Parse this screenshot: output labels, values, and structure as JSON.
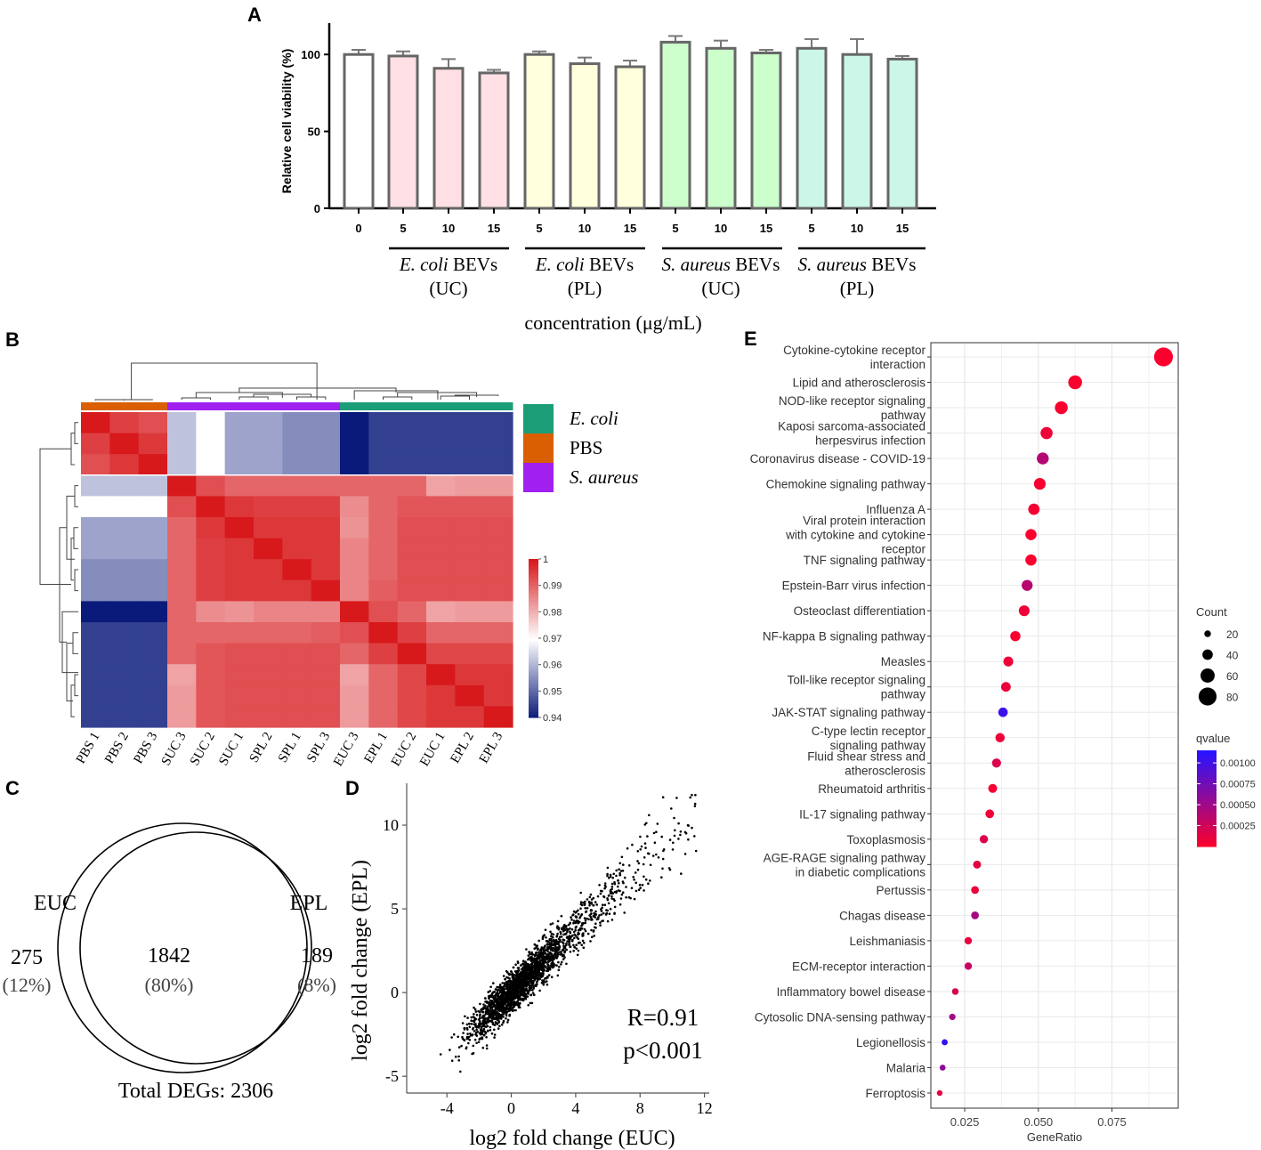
{
  "panels": {
    "a": "A",
    "b": "B",
    "c": "C",
    "d": "D",
    "e": "E"
  },
  "colors": {
    "ecoli_uc": "#ffe0e4",
    "ecoli_pl": "#ffffdd",
    "saureus_uc": "#ccffcc",
    "saureus_pl": "#ccf7e8",
    "bar_stroke": "#666666",
    "ecoli_ann": "#1b9e77",
    "pbs_ann": "#d95f02",
    "saureus_ann": "#a020f0",
    "heat_low": "#0a1a7a",
    "heat_mid": "#ffffff",
    "heat_high": "#d7191c"
  },
  "chart_data": [
    {
      "id": "A",
      "type": "bar",
      "ylabel": "Relative cell viability (%)",
      "xlabel": "concentration (μg/mL)",
      "ylim": [
        0,
        125
      ],
      "yticks": [
        "0",
        "50",
        "100"
      ],
      "categories": [
        "0",
        "5",
        "10",
        "15",
        "5",
        "10",
        "15",
        "5",
        "10",
        "15",
        "5",
        "10",
        "15"
      ],
      "values": [
        100,
        99,
        91,
        88,
        100,
        94,
        92,
        108,
        104,
        101,
        104,
        100,
        97
      ],
      "errors": [
        3,
        3,
        6,
        2,
        2,
        4,
        4,
        4,
        5,
        2,
        6,
        10,
        2
      ],
      "bar_colors": [
        "#ffffff",
        "#ffe0e4",
        "#ffe0e4",
        "#ffe0e4",
        "#ffffdd",
        "#ffffdd",
        "#ffffdd",
        "#ccffcc",
        "#ccffcc",
        "#ccffcc",
        "#ccf7e8",
        "#ccf7e8",
        "#ccf7e8"
      ],
      "groups": [
        {
          "species": "E. coli",
          "suffix": "BEVs",
          "method": "(UC)"
        },
        {
          "species": "E. coli",
          "suffix": "BEVs",
          "method": "(PL)"
        },
        {
          "species": "S. aureus",
          "suffix": "BEVs",
          "method": "(UC)"
        },
        {
          "species": "S. aureus",
          "suffix": "BEVs",
          "method": "(PL)"
        }
      ]
    },
    {
      "id": "B",
      "type": "heatmap",
      "samples": [
        "PBS 1",
        "PBS 2",
        "PBS 3",
        "SUC 3",
        "SUC 2",
        "SUC 1",
        "SPL 2",
        "SPL 1",
        "SPL 3",
        "EUC 3",
        "EPL 1",
        "EUC 2",
        "EUC 1",
        "EPL 2",
        "EPL 3"
      ],
      "annotation_groups": [
        "PBS",
        "PBS",
        "PBS",
        "S. aureus",
        "S. aureus",
        "S. aureus",
        "S. aureus",
        "S. aureus",
        "S. aureus",
        "E. coli",
        "E. coli",
        "E. coli",
        "E. coli",
        "E. coli",
        "E. coli"
      ],
      "legend": [
        "E. coli",
        "PBS",
        "S. aureus"
      ],
      "scale_ticks": [
        "1",
        "0.99",
        "0.98",
        "0.97",
        "0.96",
        "0.95",
        "0.94"
      ],
      "range": [
        0.94,
        1.0
      ],
      "matrix": [
        [
          1.0,
          0.995,
          0.993,
          0.962,
          0.97,
          0.958,
          0.958,
          0.955,
          0.955,
          0.94,
          0.945,
          0.945,
          0.945,
          0.945,
          0.945
        ],
        [
          0.995,
          1.0,
          0.996,
          0.962,
          0.97,
          0.958,
          0.958,
          0.955,
          0.955,
          0.94,
          0.945,
          0.945,
          0.945,
          0.945,
          0.945
        ],
        [
          0.993,
          0.996,
          1.0,
          0.962,
          0.97,
          0.958,
          0.958,
          0.955,
          0.955,
          0.94,
          0.945,
          0.945,
          0.945,
          0.945,
          0.945
        ],
        [
          0.962,
          0.962,
          0.962,
          1.0,
          0.993,
          0.99,
          0.99,
          0.99,
          0.99,
          0.99,
          0.99,
          0.99,
          0.982,
          0.983,
          0.983
        ],
        [
          0.97,
          0.97,
          0.97,
          0.993,
          1.0,
          0.996,
          0.995,
          0.995,
          0.995,
          0.985,
          0.99,
          0.992,
          0.992,
          0.992,
          0.992
        ],
        [
          0.958,
          0.958,
          0.958,
          0.99,
          0.996,
          1.0,
          0.996,
          0.996,
          0.996,
          0.984,
          0.99,
          0.993,
          0.993,
          0.993,
          0.993
        ],
        [
          0.958,
          0.958,
          0.958,
          0.99,
          0.995,
          0.996,
          1.0,
          0.996,
          0.996,
          0.986,
          0.99,
          0.993,
          0.993,
          0.993,
          0.993
        ],
        [
          0.955,
          0.955,
          0.955,
          0.99,
          0.995,
          0.996,
          0.996,
          1.0,
          0.996,
          0.986,
          0.99,
          0.993,
          0.993,
          0.993,
          0.993
        ],
        [
          0.955,
          0.955,
          0.955,
          0.99,
          0.995,
          0.996,
          0.996,
          0.996,
          1.0,
          0.986,
          0.991,
          0.993,
          0.993,
          0.993,
          0.993
        ],
        [
          0.94,
          0.94,
          0.94,
          0.99,
          0.985,
          0.984,
          0.986,
          0.986,
          0.986,
          1.0,
          0.993,
          0.99,
          0.982,
          0.983,
          0.983
        ],
        [
          0.945,
          0.945,
          0.945,
          0.99,
          0.99,
          0.99,
          0.99,
          0.99,
          0.991,
          0.993,
          1.0,
          0.995,
          0.99,
          0.99,
          0.99
        ],
        [
          0.945,
          0.945,
          0.945,
          0.99,
          0.992,
          0.993,
          0.993,
          0.993,
          0.993,
          0.99,
          0.995,
          1.0,
          0.994,
          0.994,
          0.994
        ],
        [
          0.945,
          0.945,
          0.945,
          0.982,
          0.992,
          0.993,
          0.993,
          0.993,
          0.993,
          0.982,
          0.99,
          0.994,
          1.0,
          0.996,
          0.996
        ],
        [
          0.945,
          0.945,
          0.945,
          0.983,
          0.992,
          0.993,
          0.993,
          0.993,
          0.993,
          0.983,
          0.99,
          0.994,
          0.996,
          1.0,
          0.996
        ],
        [
          0.945,
          0.945,
          0.945,
          0.983,
          0.992,
          0.993,
          0.993,
          0.993,
          0.993,
          0.983,
          0.99,
          0.994,
          0.996,
          0.996,
          1.0
        ]
      ]
    },
    {
      "id": "C",
      "type": "venn",
      "left_label": "EUC",
      "right_label": "EPL",
      "left_only": "275",
      "left_only_pct": "(12%)",
      "overlap": "1842",
      "overlap_pct": "(80%)",
      "right_only": "189",
      "right_only_pct": "(8%)",
      "total": "Total DEGs: 2306"
    },
    {
      "id": "D",
      "type": "scatter",
      "xlabel": "log2 fold change (EUC)",
      "ylabel": "log2 fold change (EPL)",
      "xlim": [
        -6.5,
        12.3
      ],
      "ylim": [
        -6.0,
        12.5
      ],
      "xticks": [
        -4,
        0,
        4,
        8,
        12
      ],
      "yticks": [
        -5,
        0,
        5,
        10
      ],
      "r_label": "R=0.91",
      "p_label": "p<0.001",
      "n_points": 2306,
      "slope": 0.93
    },
    {
      "id": "E",
      "type": "dot",
      "xlabel": "GeneRatio",
      "xlim": [
        0.0135,
        0.0975
      ],
      "xticks": [
        0.025,
        0.05,
        0.075
      ],
      "xtick_labels": [
        "0.025",
        "0.050",
        "0.075"
      ],
      "size_legend_title": "Count",
      "size_legend": [
        20,
        40,
        60,
        80
      ],
      "color_legend_title": "qvalue",
      "color_legend": [
        "0.00100",
        "0.00075",
        "0.00050",
        "0.00025"
      ],
      "color_range": [
        0.0,
        0.00115
      ],
      "pathways": [
        {
          "lines": [
            "Cytokine-cytokine receptor",
            "interaction"
          ],
          "ratio": 0.0925,
          "count": 85,
          "q": 2e-05
        },
        {
          "lines": [
            "Lipid and atherosclerosis"
          ],
          "ratio": 0.0625,
          "count": 58,
          "q": 3e-05
        },
        {
          "lines": [
            "NOD-like receptor signaling",
            "pathway"
          ],
          "ratio": 0.0578,
          "count": 53,
          "q": 3e-05
        },
        {
          "lines": [
            "Kaposi sarcoma-associated",
            "herpesvirus infection"
          ],
          "ratio": 0.0528,
          "count": 49,
          "q": 8e-05
        },
        {
          "lines": [
            "Coronavirus disease - COVID-19"
          ],
          "ratio": 0.0515,
          "count": 48,
          "q": 0.0004
        },
        {
          "lines": [
            "Chemokine signaling pathway"
          ],
          "ratio": 0.0505,
          "count": 47,
          "q": 5e-05
        },
        {
          "lines": [
            "Influenza A"
          ],
          "ratio": 0.0485,
          "count": 45,
          "q": 6e-05
        },
        {
          "lines": [
            "Viral protein interaction",
            "with cytokine and cytokine",
            "receptor"
          ],
          "ratio": 0.0475,
          "count": 44,
          "q": 2e-05
        },
        {
          "lines": [
            "TNF signaling pathway"
          ],
          "ratio": 0.0475,
          "count": 44,
          "q": 2e-05
        },
        {
          "lines": [
            "Epstein-Barr virus infection"
          ],
          "ratio": 0.0462,
          "count": 43,
          "q": 0.00038
        },
        {
          "lines": [
            "Osteoclast differentiation"
          ],
          "ratio": 0.0452,
          "count": 42,
          "q": 8e-05
        },
        {
          "lines": [
            "NF-kappa B signaling pathway"
          ],
          "ratio": 0.0422,
          "count": 39,
          "q": 5e-05
        },
        {
          "lines": [
            "Measles"
          ],
          "ratio": 0.0398,
          "count": 37,
          "q": 8e-05
        },
        {
          "lines": [
            "Toll-like receptor signaling",
            "pathway"
          ],
          "ratio": 0.039,
          "count": 36,
          "q": 0.0001
        },
        {
          "lines": [
            "JAK-STAT signaling pathway"
          ],
          "ratio": 0.038,
          "count": 35,
          "q": 0.00105
        },
        {
          "lines": [
            "C-type lectin receptor",
            "signaling pathway"
          ],
          "ratio": 0.037,
          "count": 34,
          "q": 0.0001
        },
        {
          "lines": [
            "Fluid shear stress and",
            "atherosclerosis"
          ],
          "ratio": 0.0358,
          "count": 33,
          "q": 0.0002
        },
        {
          "lines": [
            "Rheumatoid arthritis"
          ],
          "ratio": 0.0345,
          "count": 32,
          "q": 5e-05
        },
        {
          "lines": [
            "IL-17 signaling pathway"
          ],
          "ratio": 0.0335,
          "count": 31,
          "q": 8e-05
        },
        {
          "lines": [
            "Toxoplasmosis"
          ],
          "ratio": 0.0315,
          "count": 29,
          "q": 0.00018
        },
        {
          "lines": [
            "AGE-RAGE signaling pathway",
            "in diabetic complications"
          ],
          "ratio": 0.0292,
          "count": 27,
          "q": 0.00015
        },
        {
          "lines": [
            "Pertussis"
          ],
          "ratio": 0.0285,
          "count": 26,
          "q": 0.0001
        },
        {
          "lines": [
            "Chagas disease"
          ],
          "ratio": 0.0285,
          "count": 26,
          "q": 0.00048
        },
        {
          "lines": [
            "Leishmaniasis"
          ],
          "ratio": 0.0262,
          "count": 24,
          "q": 0.00012
        },
        {
          "lines": [
            "ECM-receptor interaction"
          ],
          "ratio": 0.0262,
          "count": 24,
          "q": 0.0003
        },
        {
          "lines": [
            "Inflammatory bowel disease"
          ],
          "ratio": 0.0218,
          "count": 20,
          "q": 0.00022
        },
        {
          "lines": [
            "Cytosolic DNA-sensing pathway"
          ],
          "ratio": 0.0208,
          "count": 19,
          "q": 0.0005
        },
        {
          "lines": [
            "Legionellosis"
          ],
          "ratio": 0.0182,
          "count": 17,
          "q": 0.0011
        },
        {
          "lines": [
            "Malaria"
          ],
          "ratio": 0.0175,
          "count": 16,
          "q": 0.0006
        },
        {
          "lines": [
            "Ferroptosis"
          ],
          "ratio": 0.0165,
          "count": 15,
          "q": 0.00015
        }
      ]
    }
  ]
}
